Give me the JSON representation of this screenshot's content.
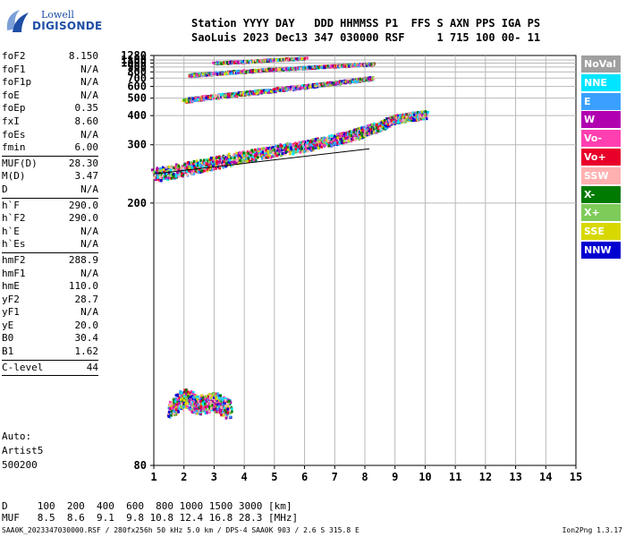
{
  "logo": {
    "line1": "Lowell",
    "line2": "DIGISONDE"
  },
  "header": {
    "line1": "Station YYYY DAY   DDD HHMMSS P1  FFS S AXN PPS IGA PS",
    "line2": "SaoLuis 2023 Dec13 347 030000 RSF     1 715 100 00- 11"
  },
  "params": [
    {
      "k": "foF2",
      "v": "8.150"
    },
    {
      "k": "foF1",
      "v": "N/A"
    },
    {
      "k": "foF1p",
      "v": "N/A"
    },
    {
      "k": "foE",
      "v": "N/A"
    },
    {
      "k": "foEp",
      "v": "0.35"
    },
    {
      "k": "fxI",
      "v": "8.60"
    },
    {
      "k": "foEs",
      "v": "N/A"
    },
    {
      "k": "fmin",
      "v": "6.00",
      "sep": true
    },
    {
      "k": "MUF(D)",
      "v": "28.30"
    },
    {
      "k": "M(D)",
      "v": "3.47"
    },
    {
      "k": "D",
      "v": "N/A",
      "sep": true
    },
    {
      "k": "h`F",
      "v": "290.0"
    },
    {
      "k": "h`F2",
      "v": "290.0"
    },
    {
      "k": "h`E",
      "v": "N/A"
    },
    {
      "k": "h`Es",
      "v": "N/A",
      "sep": true
    },
    {
      "k": "hmF2",
      "v": "288.9"
    },
    {
      "k": "hmF1",
      "v": "N/A"
    },
    {
      "k": "hmE",
      "v": "110.0"
    },
    {
      "k": "yF2",
      "v": "28.7"
    },
    {
      "k": "yF1",
      "v": "N/A"
    },
    {
      "k": "yE",
      "v": "20.0"
    },
    {
      "k": "B0",
      "v": "30.4"
    },
    {
      "k": "B1",
      "v": "1.62",
      "sep": true
    },
    {
      "k": "C-level",
      "v": "44",
      "sep": true
    }
  ],
  "notes": {
    "line1": "Auto:",
    "line2": "Artist5",
    "line3": "500200"
  },
  "muf_table": {
    "d_line": "D     100  200  400  600  800 1000 1500 3000 [km]",
    "muf_line": "MUF   8.5  8.6  9.1  9.8 10.8 12.4 16.8 28.3 [MHz]"
  },
  "footer": "SAA0K_2023347030000.RSF / 280fx256h 50 kHz 5.0 km / DPS-4 SAA0K 903 / 2.6 S 315.8 E",
  "version": "Ion2Png 1.3.17",
  "legend": [
    {
      "label": "NoVal",
      "color": "#a0a0a0"
    },
    {
      "label": "NNE",
      "color": "#00e5ff"
    },
    {
      "label": "E",
      "color": "#3aa0ff"
    },
    {
      "label": "W",
      "color": "#b000b0"
    },
    {
      "label": "Vo-",
      "color": "#ff3fb0"
    },
    {
      "label": "Vo+",
      "color": "#e8002a"
    },
    {
      "label": "SSW",
      "color": "#ffb0b0"
    },
    {
      "label": "X-",
      "color": "#007a00"
    },
    {
      "label": "X+",
      "color": "#7ecb5a"
    },
    {
      "label": "SSE",
      "color": "#d8d800"
    },
    {
      "label": "NNW",
      "color": "#0000d0"
    }
  ],
  "chart_data": {
    "type": "scatter",
    "title": "",
    "xlabel": "",
    "ylabel": "",
    "xlim": [
      1,
      15
    ],
    "ylim": [
      80,
      1280
    ],
    "yscale": "reciprocal",
    "x_ticks": [
      1,
      2,
      3,
      4,
      5,
      6,
      7,
      8,
      9,
      10,
      11,
      12,
      13,
      14,
      15
    ],
    "y_ticks": [
      80,
      200,
      300,
      400,
      500,
      600,
      700,
      800,
      900,
      1000,
      1100,
      1280
    ],
    "grid": true,
    "traces": [
      {
        "name": "F2 trace",
        "x": [
          1.0,
          2.0,
          3.0,
          4.0,
          5.0,
          6.0,
          7.0,
          7.6,
          8.0,
          8.5,
          9.0,
          9.5,
          10.0
        ],
        "y": [
          240,
          250,
          262,
          275,
          288,
          300,
          318,
          330,
          345,
          360,
          390,
          400,
          410
        ]
      },
      {
        "name": "2F2 trace",
        "x": [
          2.0,
          3.0,
          4.0,
          5.0,
          6.0,
          7.0,
          8.0,
          8.2
        ],
        "y": [
          490,
          520,
          545,
          575,
          610,
          650,
          700,
          715
        ]
      },
      {
        "name": "3F2 trace",
        "x": [
          2.2,
          3.0,
          4.0,
          5.0,
          6.0,
          7.0,
          8.0,
          8.2
        ],
        "y": [
          760,
          790,
          830,
          870,
          910,
          950,
          990,
          1000
        ]
      },
      {
        "name": "4F2 trace",
        "x": [
          3.0,
          4.0,
          5.0,
          6.0
        ],
        "y": [
          1030,
          1080,
          1140,
          1200
        ]
      },
      {
        "name": "low echoes",
        "x": [
          1.5,
          2.0,
          2.5,
          3.0,
          3.5
        ],
        "y": [
          92,
          95,
          93,
          94,
          92
        ]
      }
    ],
    "scaled_profile": {
      "x": [
        1.0,
        8.15
      ],
      "y": [
        240,
        290
      ]
    }
  }
}
